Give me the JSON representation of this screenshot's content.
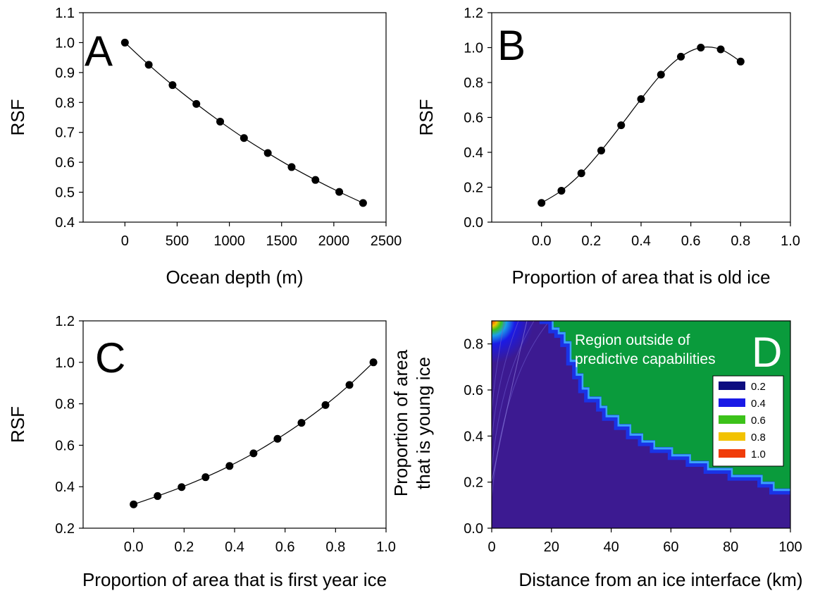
{
  "chart_data": [
    {
      "panel": "A",
      "type": "line",
      "xlabel": "Ocean depth (m)",
      "ylabel": "RSF",
      "xlim": [
        -400,
        2500
      ],
      "ylim": [
        0.4,
        1.1
      ],
      "xticks": [
        0,
        500,
        1000,
        1500,
        2000,
        2500
      ],
      "yticks": [
        0.4,
        0.5,
        0.6,
        0.7,
        0.8,
        0.9,
        1.0,
        1.1
      ],
      "tick_decimals_x": 0,
      "tick_decimals_y": 1,
      "grid": false,
      "series": [
        {
          "x": [
            0,
            228,
            456,
            684,
            912,
            1140,
            1368,
            1596,
            1824,
            2052,
            2280
          ],
          "y": [
            1.0,
            0.926,
            0.858,
            0.795,
            0.736,
            0.681,
            0.631,
            0.584,
            0.541,
            0.501,
            0.464
          ]
        }
      ]
    },
    {
      "panel": "B",
      "type": "line",
      "xlabel": "Proportion of area that is old ice",
      "ylabel": "RSF",
      "xlim": [
        -0.2,
        1.0
      ],
      "ylim": [
        0.0,
        1.2
      ],
      "xticks": [
        0.0,
        0.2,
        0.4,
        0.6,
        0.8,
        1.0
      ],
      "yticks": [
        0.0,
        0.2,
        0.4,
        0.6,
        0.8,
        1.0,
        1.2
      ],
      "tick_decimals_x": 1,
      "tick_decimals_y": 1,
      "grid": false,
      "series": [
        {
          "x": [
            0.0,
            0.08,
            0.16,
            0.24,
            0.32,
            0.4,
            0.48,
            0.56,
            0.64,
            0.72,
            0.8
          ],
          "y": [
            0.11,
            0.18,
            0.28,
            0.41,
            0.555,
            0.705,
            0.845,
            0.948,
            1.0,
            0.99,
            0.92
          ]
        }
      ]
    },
    {
      "panel": "C",
      "type": "line",
      "xlabel": "Proportion of area that is first year ice",
      "ylabel": "RSF",
      "xlim": [
        -0.2,
        1.0
      ],
      "ylim": [
        0.2,
        1.2
      ],
      "xticks": [
        0.0,
        0.2,
        0.4,
        0.6,
        0.8,
        1.0
      ],
      "yticks": [
        0.2,
        0.4,
        0.6,
        0.8,
        1.0,
        1.2
      ],
      "tick_decimals_x": 1,
      "tick_decimals_y": 1,
      "grid": false,
      "series": [
        {
          "x": [
            0.0,
            0.095,
            0.19,
            0.285,
            0.38,
            0.475,
            0.57,
            0.665,
            0.76,
            0.855,
            0.95
          ],
          "y": [
            0.315,
            0.355,
            0.398,
            0.446,
            0.5,
            0.561,
            0.631,
            0.708,
            0.794,
            0.891,
            1.0
          ]
        }
      ]
    },
    {
      "panel": "D",
      "type": "heatmap",
      "xlabel": "Distance from an ice interface (km)",
      "ylabel_lines": [
        "Proportion of area",
        "that is young ice"
      ],
      "xlim": [
        0,
        100
      ],
      "ylim": [
        0.0,
        0.9
      ],
      "xticks": [
        0,
        20,
        40,
        60,
        80,
        100
      ],
      "yticks": [
        0.0,
        0.2,
        0.4,
        0.6,
        0.8
      ],
      "tick_decimals_x": 0,
      "tick_decimals_y": 1,
      "annotation_lines": [
        "Region outside of",
        "predictive capabilities"
      ],
      "legend_position": "upper-right",
      "legend": [
        {
          "label": "0.2",
          "color": "#0d0d80"
        },
        {
          "label": "0.4",
          "color": "#1a1ae6"
        },
        {
          "label": "0.6",
          "color": "#3cc21a"
        },
        {
          "label": "0.8",
          "color": "#f2c200"
        },
        {
          "label": "1.0",
          "color": "#f03c0a"
        }
      ],
      "colors": {
        "base_region": "#3c1a91",
        "outside_region": "#0a9b3c",
        "boundary_edge": "#1a33e6"
      },
      "boundary": {
        "x": [
          16,
          20,
          20,
          22,
          22,
          24,
          24,
          26,
          26,
          28,
          28,
          30,
          30,
          32,
          32,
          36,
          36,
          38,
          38,
          42,
          42,
          46,
          46,
          50,
          50,
          54,
          54,
          60,
          60,
          66,
          66,
          72,
          72,
          80,
          80,
          90,
          90,
          94,
          94,
          100
        ],
        "y": [
          0.9,
          0.9,
          0.86,
          0.86,
          0.84,
          0.84,
          0.8,
          0.8,
          0.72,
          0.72,
          0.66,
          0.66,
          0.6,
          0.6,
          0.56,
          0.56,
          0.52,
          0.52,
          0.48,
          0.48,
          0.44,
          0.44,
          0.4,
          0.4,
          0.37,
          0.37,
          0.34,
          0.34,
          0.31,
          0.31,
          0.28,
          0.28,
          0.25,
          0.25,
          0.22,
          0.22,
          0.19,
          0.19,
          0.16,
          0.16
        ]
      },
      "contour_hints": {
        "hotspot_corner": "upper-left",
        "contour_levels": [
          0.2,
          0.4,
          0.6,
          0.8,
          1.0
        ]
      }
    }
  ]
}
